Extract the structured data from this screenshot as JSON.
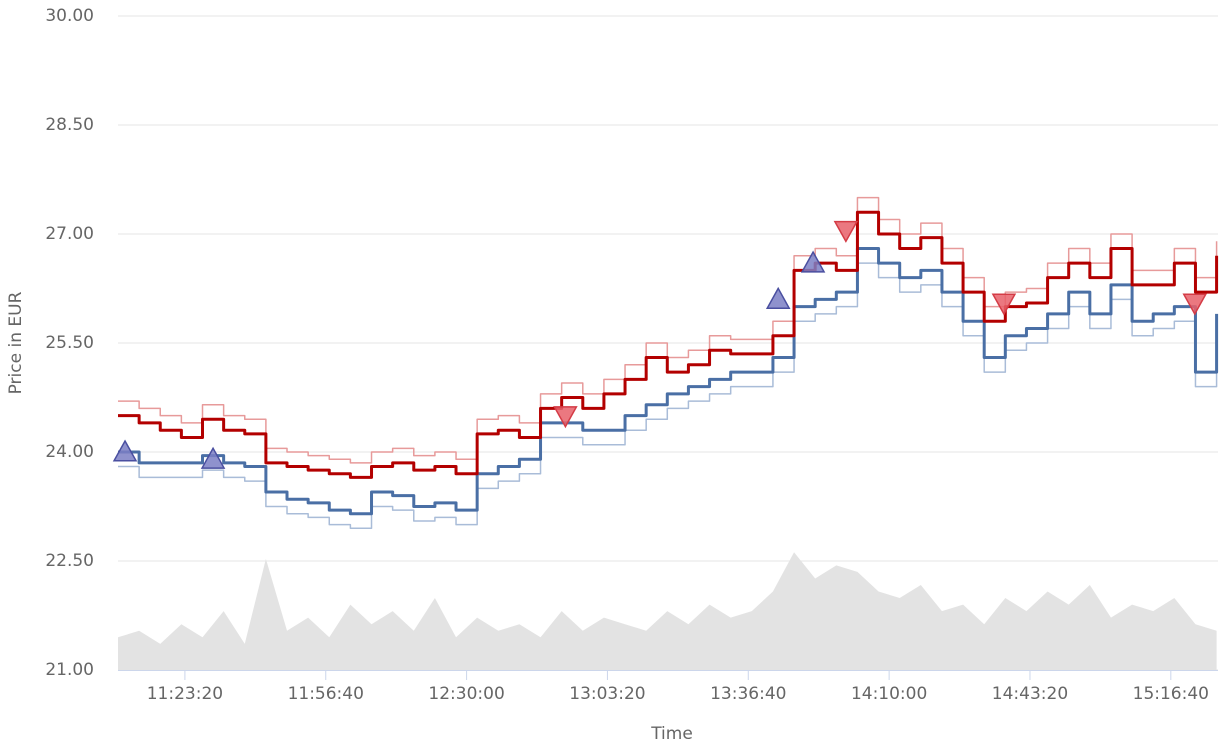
{
  "chart_data": {
    "type": "line",
    "xlabel": "Time",
    "ylabel": "Price in EUR",
    "x": [
      40050,
      40350,
      40650,
      40950,
      41250,
      41550,
      41850,
      42150,
      42450,
      42750,
      43050,
      43350,
      43650,
      43950,
      44250,
      44550,
      44850,
      45150,
      45450,
      45750,
      46050,
      46350,
      46650,
      46950,
      47250,
      47550,
      47850,
      48150,
      48450,
      48750,
      49050,
      49350,
      49650,
      49950,
      50250,
      50550,
      50850,
      51150,
      51450,
      51750,
      52050,
      52350,
      52650,
      52950,
      53250,
      53550,
      53850,
      54150,
      54450,
      54750,
      55050,
      55350,
      55650
    ],
    "xlim": [
      40050,
      55670
    ],
    "xticks": [
      {
        "value": 41000,
        "label": "11:23:20"
      },
      {
        "value": 43000,
        "label": "11:56:40"
      },
      {
        "value": 45000,
        "label": "12:30:00"
      },
      {
        "value": 47000,
        "label": "13:03:20"
      },
      {
        "value": 49000,
        "label": "13:36:40"
      },
      {
        "value": 51000,
        "label": "14:10:00"
      },
      {
        "value": 53000,
        "label": "14:43:20"
      },
      {
        "value": 55000,
        "label": "15:16:40"
      }
    ],
    "ylim": [
      21,
      30
    ],
    "yticks": [
      {
        "value": 21,
        "label": "21.00"
      },
      {
        "value": 22.5,
        "label": "22.50"
      },
      {
        "value": 24,
        "label": "24.00"
      },
      {
        "value": 25.5,
        "label": "25.50"
      },
      {
        "value": 27,
        "label": "27.00"
      },
      {
        "value": 28.5,
        "label": "28.50"
      },
      {
        "value": 30,
        "label": "30.00"
      }
    ],
    "grid": true,
    "y2lim": [
      0,
      100
    ],
    "series": [
      {
        "color": "#a9bcd8",
        "width": 1.5,
        "values": [
          23.8,
          23.65,
          23.65,
          23.65,
          23.75,
          23.65,
          23.6,
          23.25,
          23.15,
          23.1,
          23.0,
          22.95,
          23.25,
          23.2,
          23.05,
          23.1,
          23.0,
          23.5,
          23.6,
          23.7,
          24.2,
          24.2,
          24.1,
          24.1,
          24.3,
          24.45,
          24.6,
          24.7,
          24.8,
          24.9,
          24.9,
          25.1,
          25.8,
          25.9,
          26.0,
          26.6,
          26.4,
          26.2,
          26.3,
          26.0,
          25.6,
          25.1,
          25.4,
          25.5,
          25.7,
          26.0,
          25.7,
          26.1,
          25.6,
          25.7,
          25.8,
          24.9,
          25.7
        ]
      },
      {
        "color": "#e79a9a",
        "width": 1.5,
        "values": [
          24.7,
          24.6,
          24.5,
          24.4,
          24.65,
          24.5,
          24.45,
          24.05,
          24.0,
          23.95,
          23.9,
          23.85,
          24.0,
          24.05,
          23.95,
          24.0,
          23.9,
          24.45,
          24.5,
          24.4,
          24.8,
          24.95,
          24.8,
          25.0,
          25.2,
          25.5,
          25.3,
          25.4,
          25.6,
          25.55,
          25.55,
          25.8,
          26.7,
          26.8,
          26.7,
          27.5,
          27.2,
          27.0,
          27.15,
          26.8,
          26.4,
          26.0,
          26.2,
          26.25,
          26.6,
          26.8,
          26.6,
          27.0,
          26.5,
          26.5,
          26.8,
          26.4,
          26.9
        ]
      },
      {
        "color": "#4a6fa5",
        "width": 3,
        "values": [
          24.0,
          23.85,
          23.85,
          23.85,
          23.95,
          23.85,
          23.8,
          23.45,
          23.35,
          23.3,
          23.2,
          23.15,
          23.45,
          23.4,
          23.25,
          23.3,
          23.2,
          23.7,
          23.8,
          23.9,
          24.4,
          24.4,
          24.3,
          24.3,
          24.5,
          24.65,
          24.8,
          24.9,
          25.0,
          25.1,
          25.1,
          25.3,
          26.0,
          26.1,
          26.2,
          26.8,
          26.6,
          26.4,
          26.5,
          26.2,
          25.8,
          25.3,
          25.6,
          25.7,
          25.9,
          26.2,
          25.9,
          26.3,
          25.8,
          25.9,
          26.0,
          25.1,
          25.9
        ]
      },
      {
        "color": "#b30000",
        "width": 3,
        "values": [
          24.5,
          24.4,
          24.3,
          24.2,
          24.45,
          24.3,
          24.25,
          23.85,
          23.8,
          23.75,
          23.7,
          23.65,
          23.8,
          23.85,
          23.75,
          23.8,
          23.7,
          24.25,
          24.3,
          24.2,
          24.6,
          24.75,
          24.6,
          24.8,
          25.0,
          25.3,
          25.1,
          25.2,
          25.4,
          25.35,
          25.35,
          25.6,
          26.5,
          26.6,
          26.5,
          27.3,
          27.0,
          26.8,
          26.95,
          26.6,
          26.2,
          25.8,
          26.0,
          26.05,
          26.4,
          26.6,
          26.4,
          26.8,
          26.3,
          26.3,
          26.6,
          26.2,
          26.7
        ]
      }
    ],
    "volume": {
      "color": "#e3e3e3",
      "axis": "y2",
      "values": [
        5,
        6,
        4,
        7,
        5,
        9,
        4,
        17,
        6,
        8,
        5,
        10,
        7,
        9,
        6,
        11,
        5,
        8,
        6,
        7,
        5,
        9,
        6,
        8,
        7,
        6,
        9,
        7,
        10,
        8,
        9,
        12,
        18,
        14,
        16,
        15,
        12,
        11,
        13,
        9,
        10,
        7,
        11,
        9,
        12,
        10,
        13,
        8,
        10,
        9,
        11,
        7,
        6
      ]
    },
    "markers": [
      {
        "shape": "triangle-up",
        "color": "#7b7fc4",
        "x": [
          40150,
          41400,
          49425,
          49920
        ],
        "y": [
          24.0,
          23.9,
          26.1,
          26.6
        ]
      },
      {
        "shape": "triangle-down",
        "color": "#e8606a",
        "x": [
          46403,
          50386,
          52630,
          55340
        ],
        "y": [
          24.5,
          27.05,
          26.05,
          26.05
        ]
      }
    ]
  }
}
